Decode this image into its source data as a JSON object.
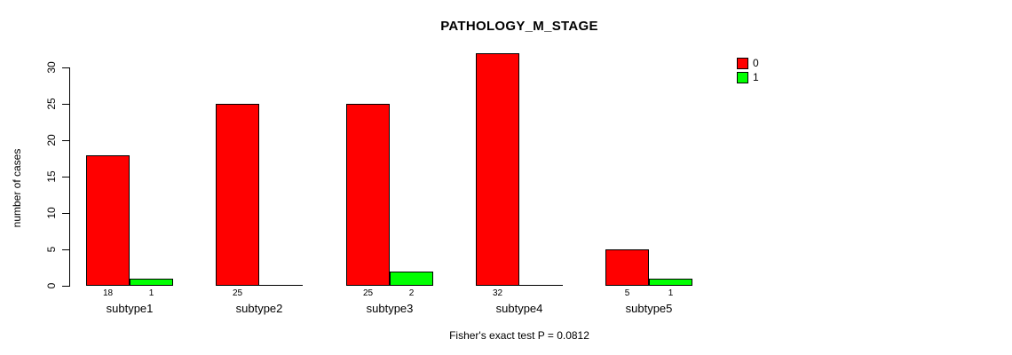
{
  "chart_data": {
    "type": "bar",
    "title": "PATHOLOGY_M_STAGE",
    "ylabel": "number of cases",
    "xlabel": "",
    "annotation": "Fisher's exact test P = 0.0812",
    "categories": [
      "subtype1",
      "subtype2",
      "subtype3",
      "subtype4",
      "subtype5"
    ],
    "series": [
      {
        "name": "0",
        "color": "#FF0000",
        "values": [
          18,
          25,
          25,
          32,
          5
        ]
      },
      {
        "name": "1",
        "color": "#00FF00",
        "values": [
          1,
          0,
          2,
          0,
          1
        ]
      }
    ],
    "bar_value_labels": [
      [
        "18",
        "1"
      ],
      [
        "25",
        ""
      ],
      [
        "25",
        "2"
      ],
      [
        "32",
        ""
      ],
      [
        "5",
        "1"
      ]
    ],
    "yticks": [
      0,
      5,
      10,
      15,
      20,
      25,
      30
    ],
    "ylim": [
      0,
      32
    ],
    "grid": false,
    "legend_position": "topright",
    "bar_border_color": "#000000",
    "background_color": "#FFFFFF"
  }
}
